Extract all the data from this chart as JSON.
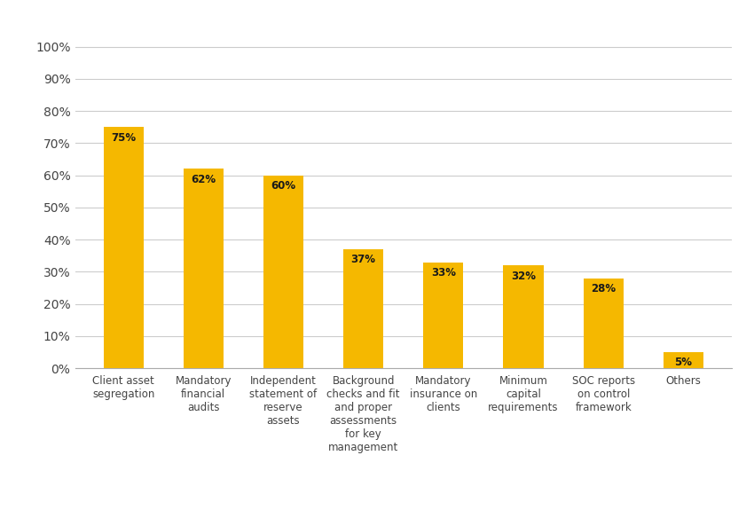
{
  "categories": [
    "Client asset\nsegregation",
    "Mandatory\nfinancial\naudits",
    "Independent\nstatement of\nreserve\nassets",
    "Background\nchecks and fit\nand proper\nassessments\nfor key\nmanagement",
    "Mandatory\ninsurance on\nclients",
    "Minimum\ncapital\nrequirements",
    "SOC reports\non control\nframework",
    "Others"
  ],
  "values": [
    75,
    62,
    60,
    37,
    33,
    32,
    28,
    5
  ],
  "labels": [
    "75%",
    "62%",
    "60%",
    "37%",
    "33%",
    "32%",
    "28%",
    "5%"
  ],
  "bar_color": "#F5B800",
  "background_color": "#FFFFFF",
  "ytick_labels": [
    "0%",
    "10%",
    "20%",
    "30%",
    "40%",
    "50%",
    "60%",
    "70%",
    "80%",
    "90%",
    "100%"
  ],
  "ytick_values": [
    0,
    10,
    20,
    30,
    40,
    50,
    60,
    70,
    80,
    90,
    100
  ],
  "ylim": [
    0,
    108
  ],
  "grid_color": "#CCCCCC",
  "label_fontsize": 8.5,
  "tick_fontsize": 10,
  "label_color": "#1A1A1A",
  "bar_width": 0.5
}
